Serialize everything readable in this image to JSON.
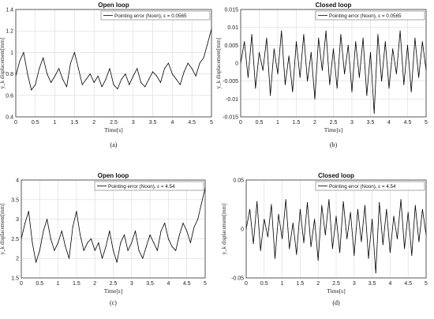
{
  "chart_data": [
    {
      "type": "line",
      "caption": "(a)",
      "title": "Open loop",
      "xlabel": "Time[s]",
      "ylabel": "y_k displacement[mm]",
      "xlim": [
        0,
        5
      ],
      "ylim": [
        0.4,
        1.4
      ],
      "xticks": [
        0,
        0.5,
        1,
        1.5,
        2,
        2.5,
        3,
        3.5,
        4,
        4.5,
        5
      ],
      "xtick_labels": [
        "0",
        "0.5",
        "1",
        "1.5",
        "2",
        "2.5",
        "3",
        "3.5",
        "4",
        "4.5",
        "5"
      ],
      "yticks": [
        0.4,
        0.6,
        0.8,
        1.0,
        1.2,
        1.4
      ],
      "ytick_labels": [
        "0.4",
        "0.6",
        "0.8",
        "1",
        "1.2",
        "1.4"
      ],
      "grid": true,
      "legend_position": "top-right",
      "color": "#000000",
      "series": [
        {
          "name": "Pointing error (Noon), ε = 0.0565",
          "x": [
            0,
            0.1,
            0.2,
            0.3,
            0.4,
            0.5,
            0.6,
            0.7,
            0.8,
            0.9,
            1.0,
            1.1,
            1.2,
            1.3,
            1.4,
            1.5,
            1.6,
            1.7,
            1.8,
            1.9,
            2.0,
            2.1,
            2.2,
            2.3,
            2.4,
            2.5,
            2.6,
            2.7,
            2.8,
            2.9,
            3.0,
            3.1,
            3.2,
            3.3,
            3.4,
            3.5,
            3.6,
            3.7,
            3.8,
            3.9,
            4.0,
            4.1,
            4.2,
            4.3,
            4.4,
            4.5,
            4.6,
            4.7,
            4.8,
            4.9,
            5.0
          ],
          "y": [
            0.78,
            0.92,
            1.0,
            0.8,
            0.65,
            0.7,
            0.85,
            0.95,
            0.8,
            0.72,
            0.78,
            0.85,
            0.75,
            0.68,
            0.9,
            1.0,
            0.85,
            0.7,
            0.75,
            0.8,
            0.72,
            0.78,
            0.68,
            0.75,
            0.85,
            0.7,
            0.66,
            0.75,
            0.8,
            0.7,
            0.78,
            0.85,
            0.72,
            0.68,
            0.75,
            0.82,
            0.78,
            0.72,
            0.85,
            0.9,
            0.8,
            0.75,
            0.7,
            0.82,
            0.9,
            0.85,
            0.78,
            0.9,
            0.95,
            1.08,
            1.22
          ]
        }
      ]
    },
    {
      "type": "line",
      "caption": "(b)",
      "title": "Closed loop",
      "xlabel": "Time[s]",
      "ylabel": "y_k displacement[mm]",
      "xlim": [
        0,
        5
      ],
      "ylim": [
        -0.015,
        0.015
      ],
      "xticks": [
        0,
        0.5,
        1,
        1.5,
        2,
        2.5,
        3,
        3.5,
        4,
        4.5,
        5
      ],
      "xtick_labels": [
        "0",
        "0.5",
        "1",
        "1.5",
        "2",
        "2.5",
        "3",
        "3.5",
        "4",
        "4.5",
        "5"
      ],
      "yticks": [
        -0.015,
        -0.01,
        -0.005,
        0,
        0.005,
        0.01,
        0.015
      ],
      "ytick_labels": [
        "-0.015",
        "-0.01",
        "-0.005",
        "0",
        "0.005",
        "0.01",
        "0.015"
      ],
      "grid": true,
      "legend_position": "top-right",
      "color": "#000000",
      "series": [
        {
          "name": "Pointing error (Noon), ε = 0.0565",
          "x": [
            0,
            0.1,
            0.2,
            0.3,
            0.4,
            0.5,
            0.6,
            0.7,
            0.8,
            0.9,
            1.0,
            1.1,
            1.2,
            1.3,
            1.4,
            1.5,
            1.6,
            1.7,
            1.8,
            1.9,
            2.0,
            2.1,
            2.2,
            2.3,
            2.4,
            2.5,
            2.6,
            2.7,
            2.8,
            2.9,
            3.0,
            3.1,
            3.2,
            3.3,
            3.4,
            3.5,
            3.6,
            3.7,
            3.8,
            3.9,
            4.0,
            4.1,
            4.2,
            4.3,
            4.4,
            4.5,
            4.6,
            4.7,
            4.8,
            4.9,
            5.0
          ],
          "y": [
            0.0,
            0.006,
            -0.004,
            0.008,
            -0.007,
            0.003,
            -0.002,
            0.007,
            -0.009,
            0.004,
            -0.003,
            0.009,
            -0.006,
            0.002,
            -0.008,
            0.006,
            -0.004,
            0.008,
            -0.005,
            0.003,
            -0.01,
            0.007,
            -0.002,
            0.009,
            -0.006,
            0.004,
            -0.007,
            0.008,
            -0.003,
            0.005,
            -0.008,
            0.006,
            -0.004,
            0.007,
            -0.009,
            0.003,
            -0.014,
            0.008,
            -0.005,
            0.006,
            -0.007,
            0.004,
            -0.003,
            0.009,
            -0.006,
            0.005,
            -0.008,
            0.007,
            -0.004,
            0.006,
            -0.002
          ]
        }
      ]
    },
    {
      "type": "line",
      "caption": "(c)",
      "title": "Open loop",
      "xlabel": "Time[s]",
      "ylabel": "y_k displacement[mm]",
      "xlim": [
        0,
        5
      ],
      "ylim": [
        1.5,
        4
      ],
      "xticks": [
        0,
        0.5,
        1,
        1.5,
        2,
        2.5,
        3,
        3.5,
        4,
        4.5,
        5
      ],
      "xtick_labels": [
        "0",
        "0.5",
        "1",
        "1.5",
        "2",
        "2.5",
        "3",
        "3.5",
        "4",
        "4.5",
        "5"
      ],
      "yticks": [
        1.5,
        2,
        2.5,
        3,
        3.5,
        4
      ],
      "ytick_labels": [
        "1.5",
        "2",
        "2.5",
        "3",
        "3.5",
        "4"
      ],
      "grid": true,
      "legend_position": "top-right",
      "color": "#000000",
      "series": [
        {
          "name": "Pointing error (Noon), ε = 4.54",
          "x": [
            0,
            0.1,
            0.2,
            0.3,
            0.4,
            0.5,
            0.6,
            0.7,
            0.8,
            0.9,
            1.0,
            1.1,
            1.2,
            1.3,
            1.4,
            1.5,
            1.6,
            1.7,
            1.8,
            1.9,
            2.0,
            2.1,
            2.2,
            2.3,
            2.4,
            2.5,
            2.6,
            2.7,
            2.8,
            2.9,
            3.0,
            3.1,
            3.2,
            3.3,
            3.4,
            3.5,
            3.6,
            3.7,
            3.8,
            3.9,
            4.0,
            4.1,
            4.2,
            4.3,
            4.4,
            4.5,
            4.6,
            4.7,
            4.8,
            4.9,
            5.0
          ],
          "y": [
            2.5,
            2.9,
            3.2,
            2.4,
            1.9,
            2.2,
            2.7,
            3.0,
            2.5,
            2.2,
            2.4,
            2.7,
            2.3,
            2.0,
            2.8,
            3.2,
            2.6,
            2.2,
            2.4,
            2.5,
            2.2,
            2.4,
            2.0,
            2.3,
            2.7,
            2.2,
            1.9,
            2.4,
            2.6,
            2.2,
            2.4,
            2.7,
            2.2,
            2.0,
            2.3,
            2.6,
            2.4,
            2.2,
            2.7,
            2.9,
            2.5,
            2.3,
            2.2,
            2.6,
            2.9,
            2.7,
            2.4,
            2.8,
            3.0,
            3.4,
            3.8
          ]
        }
      ]
    },
    {
      "type": "line",
      "caption": "(d)",
      "title": "Closed loop",
      "xlabel": "Time[s]",
      "ylabel": "y_k displacement[mm]",
      "xlim": [
        0,
        5
      ],
      "ylim": [
        -0.05,
        0.05
      ],
      "xticks": [
        0,
        0.5,
        1,
        1.5,
        2,
        2.5,
        3,
        3.5,
        4,
        4.5,
        5
      ],
      "xtick_labels": [
        "0",
        "0.5",
        "1",
        "1.5",
        "2",
        "2.5",
        "3",
        "3.5",
        "4",
        "4.5",
        "5"
      ],
      "yticks": [
        -0.05,
        0,
        0.05
      ],
      "ytick_labels": [
        "-0.05",
        "0",
        "0.05"
      ],
      "grid": true,
      "legend_position": "top-right",
      "color": "#000000",
      "series": [
        {
          "name": "Pointing error (Noon), ε = 4.54",
          "x": [
            0,
            0.1,
            0.2,
            0.3,
            0.4,
            0.5,
            0.6,
            0.7,
            0.8,
            0.9,
            1.0,
            1.1,
            1.2,
            1.3,
            1.4,
            1.5,
            1.6,
            1.7,
            1.8,
            1.9,
            2.0,
            2.1,
            2.2,
            2.3,
            2.4,
            2.5,
            2.6,
            2.7,
            2.8,
            2.9,
            3.0,
            3.1,
            3.2,
            3.3,
            3.4,
            3.5,
            3.6,
            3.7,
            3.8,
            3.9,
            4.0,
            4.1,
            4.2,
            4.3,
            4.4,
            4.5,
            4.6,
            4.7,
            4.8,
            4.9,
            5.0
          ],
          "y": [
            0.0,
            0.02,
            -0.015,
            0.028,
            -0.022,
            0.01,
            -0.008,
            0.025,
            -0.03,
            0.015,
            -0.01,
            0.03,
            -0.02,
            0.006,
            -0.026,
            0.02,
            -0.014,
            0.027,
            -0.018,
            0.01,
            -0.032,
            0.024,
            -0.006,
            0.03,
            -0.02,
            0.013,
            -0.024,
            0.028,
            -0.01,
            0.017,
            -0.027,
            0.02,
            -0.013,
            0.024,
            -0.03,
            0.01,
            -0.045,
            0.027,
            -0.016,
            0.02,
            -0.024,
            0.013,
            -0.01,
            0.03,
            -0.02,
            0.017,
            -0.027,
            0.024,
            -0.013,
            0.02,
            -0.006
          ]
        }
      ]
    }
  ]
}
